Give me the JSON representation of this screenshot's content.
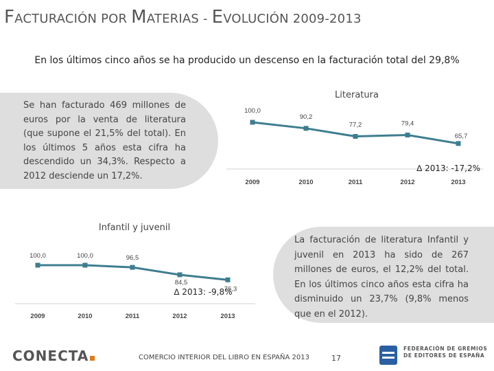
{
  "header": {
    "title_parts": [
      {
        "big": "F",
        "small": "ACTURACIÓN POR "
      },
      {
        "big": "M",
        "small": "ATERIAS - "
      },
      {
        "big": "E",
        "small": "VOLUCIÓN 2009-2013"
      }
    ],
    "subtitle": "En los últimos cinco años se ha producido un descenso en la facturación total del 29,8%"
  },
  "text_left": "Se han facturado 469 millones de euros por la venta de literatura (que supone el 21,5% del total). En los últimos 5 años esta cifra ha descendido un 34,3%. Respecto a 2012 desciende un 17,2%.",
  "text_right": "La facturación de literatura Infantil y juvenil en 2013 ha sido de 267 millones de euros, el 12,2% del total. En los últimos cinco años esta cifra ha disminuido un 23,7% (9,8% menos que en el 2012).",
  "chart_data": [
    {
      "type": "line",
      "title": "Literatura",
      "categories": [
        "2009",
        "2010",
        "2011",
        "2012",
        "2013"
      ],
      "values": [
        100.0,
        90.2,
        77.2,
        79.4,
        65.7
      ],
      "value_labels": [
        "100,0",
        "90,2",
        "77,2",
        "79,4",
        "65,7"
      ],
      "annotation": "∆ 2013: -17,2%",
      "color": "#3e7d8f"
    },
    {
      "type": "line",
      "title": "Infantil y juvenil",
      "categories": [
        "2009",
        "2010",
        "2011",
        "2012",
        "2013"
      ],
      "values": [
        100.0,
        100.0,
        96.5,
        84.5,
        76.3
      ],
      "value_labels": [
        "100,0",
        "100,0",
        "96,5",
        "84,5",
        "76,3"
      ],
      "annotation": "∆ 2013: -9,8%",
      "color": "#3e7d8f"
    }
  ],
  "footer": {
    "logo": "CONECTA",
    "source": "COMERCIO INTERIOR DEL LIBRO EN ESPAÑA 2013",
    "page": "17",
    "federation_line1": "FEDERACIÓN DE GREMIOS",
    "federation_line2": "DE EDITORES DE ESPAÑA"
  }
}
